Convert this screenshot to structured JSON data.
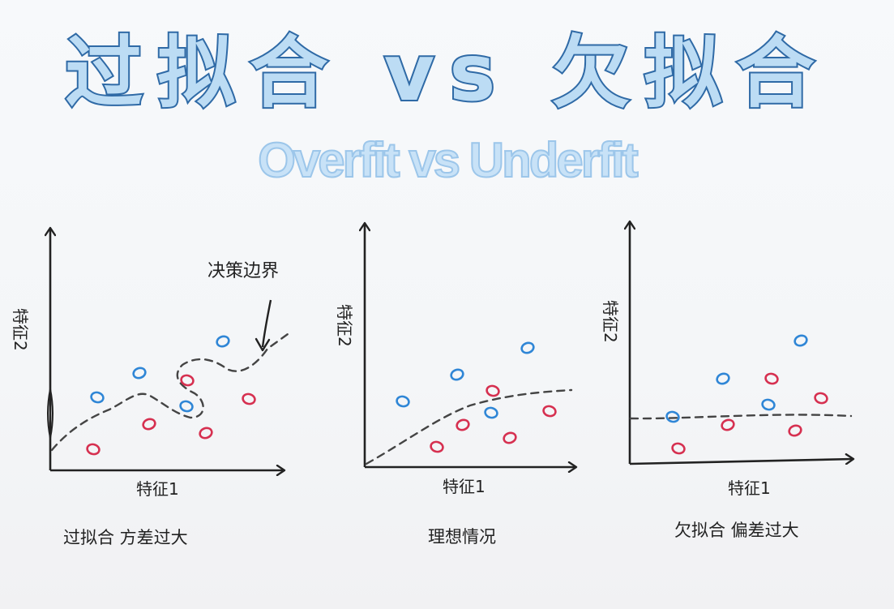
{
  "title": {
    "cn": "过拟合 vs 欠拟合",
    "en": "Overfit vs Underfit"
  },
  "panels": [
    {
      "caption": "过拟合 方差过大",
      "xlabel": "特征1",
      "ylabel": "特征2",
      "annotation": "决策边界",
      "boundary": "wiggly",
      "blue_points": [
        [
          120,
          490
        ],
        [
          172,
          460
        ],
        [
          230,
          501
        ],
        [
          275,
          421
        ]
      ],
      "red_points": [
        [
          115,
          554
        ],
        [
          184,
          523
        ],
        [
          231,
          469
        ],
        [
          254,
          534
        ],
        [
          307,
          492
        ]
      ]
    },
    {
      "caption": "理想情况",
      "xlabel": "特征1",
      "ylabel": "特征2",
      "boundary": "smooth",
      "blue_points": [
        [
          497,
          495
        ],
        [
          564,
          462
        ],
        [
          606,
          509
        ],
        [
          651,
          429
        ]
      ],
      "red_points": [
        [
          539,
          551
        ],
        [
          571,
          524
        ],
        [
          608,
          482
        ],
        [
          629,
          540
        ],
        [
          678,
          507
        ]
      ]
    },
    {
      "caption": "欠拟合 偏差过大",
      "xlabel": "特征1",
      "ylabel": "特征2",
      "boundary": "flat",
      "blue_points": [
        [
          830,
          514
        ],
        [
          892,
          467
        ],
        [
          948,
          499
        ],
        [
          988,
          420
        ]
      ],
      "red_points": [
        [
          837,
          553
        ],
        [
          898,
          524
        ],
        [
          952,
          467
        ],
        [
          981,
          531
        ],
        [
          1013,
          491
        ]
      ]
    }
  ],
  "colors": {
    "blue": "#2f86d6",
    "red": "#d63050",
    "ink": "#222222",
    "title_stroke": "#2f6aa6"
  }
}
